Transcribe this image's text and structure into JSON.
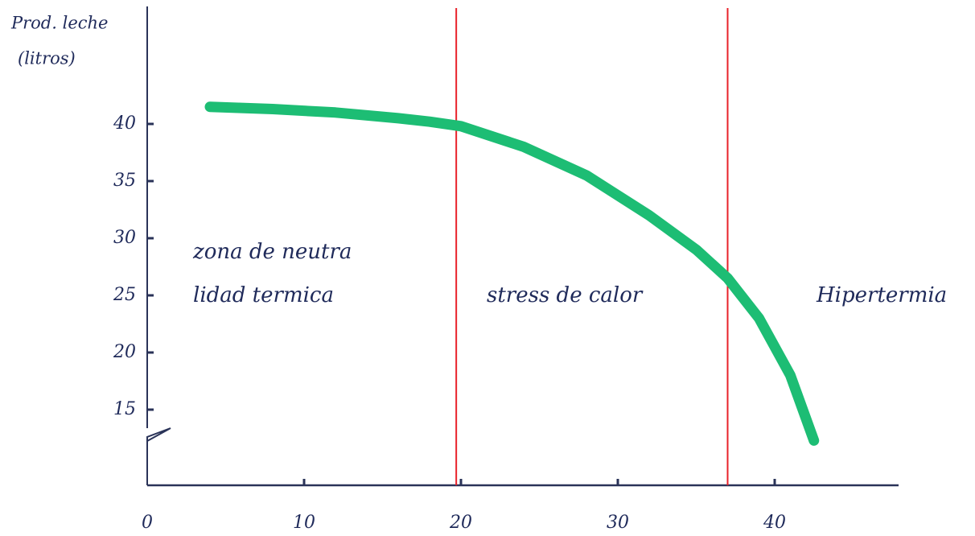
{
  "chart_data": {
    "type": "line",
    "y_label": [
      "Prod. leche",
      "(litros)"
    ],
    "x": [
      4,
      8,
      12,
      16,
      18,
      20,
      24,
      28,
      32,
      35,
      37,
      39,
      41,
      42.5
    ],
    "series": [
      {
        "color": "#1dbd74",
        "values": [
          41.5,
          41.3,
          41,
          40.5,
          40.2,
          39.8,
          38,
          35.5,
          32,
          29,
          26.5,
          23,
          18,
          12.3
        ]
      }
    ],
    "xlim": [
      0,
      48
    ],
    "xticks": [
      0,
      10,
      20,
      30,
      40
    ],
    "ylim": [
      15,
      50
    ],
    "yticks": [
      15,
      20,
      25,
      30,
      35,
      40
    ],
    "boundaries": {
      "color": "#e8222a",
      "x": [
        19.7,
        37
      ]
    },
    "zones": [
      {
        "lines": [
          "zona de neutra",
          "lidad termica"
        ]
      },
      {
        "lines": [
          "stress de calor"
        ]
      },
      {
        "lines": [
          "Hipertermia"
        ]
      }
    ]
  }
}
